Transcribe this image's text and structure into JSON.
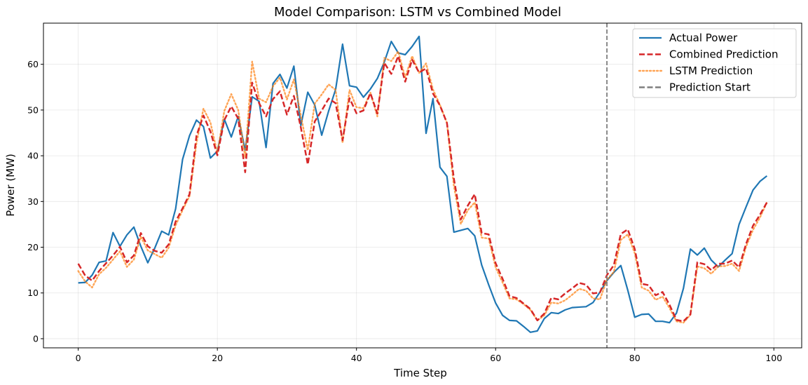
{
  "chart_data": {
    "type": "line",
    "title": "Model Comparison: LSTM vs Combined Model",
    "xlabel": "Time Step",
    "ylabel": "Power (MW)",
    "xlim": [
      -5,
      104
    ],
    "ylim": [
      -2,
      69
    ],
    "xticks": [
      0,
      20,
      40,
      60,
      80,
      100
    ],
    "yticks": [
      0,
      10,
      20,
      30,
      40,
      50,
      60
    ],
    "grid": true,
    "legend_position": "top-right",
    "prediction_start": 76,
    "series": [
      {
        "name": "Actual Power",
        "color": "#1f77b4",
        "style": "solid",
        "values": [
          12.2,
          12.3,
          13.9,
          16.7,
          17.0,
          23.2,
          20.2,
          22.7,
          24.4,
          20.2,
          16.6,
          19.8,
          23.5,
          22.7,
          28.4,
          39.2,
          44.4,
          47.8,
          46.4,
          39.5,
          41.0,
          48.0,
          44.1,
          48.6,
          41.2,
          52.9,
          51.9,
          41.8,
          55.8,
          57.8,
          54.8,
          59.6,
          46.6,
          53.9,
          51.1,
          44.5,
          49.8,
          54.5,
          64.4,
          55.3,
          55.0,
          52.8,
          54.6,
          56.9,
          60.5,
          65.0,
          62.5,
          62.1,
          63.9,
          66.1,
          44.9,
          52.5,
          37.5,
          35.5,
          23.3,
          23.7,
          24.1,
          22.5,
          16.1,
          11.8,
          7.8,
          5.1,
          4.0,
          3.9,
          2.7,
          1.4,
          1.7,
          4.4,
          5.7,
          5.5,
          6.3,
          6.8,
          6.9,
          7.0,
          7.9,
          10.2,
          12.7,
          14.5,
          16.0,
          10.6,
          4.7,
          5.3,
          5.4,
          3.8,
          3.8,
          3.5,
          5.6,
          11.0,
          19.6,
          18.3,
          19.8,
          17.2,
          15.7,
          17.2,
          18.6,
          25.0,
          28.8,
          32.5,
          34.4,
          35.6
        ]
      },
      {
        "name": "Combined Prediction",
        "color": "#d62728",
        "style": "dashed",
        "values": [
          16.4,
          13.8,
          12.7,
          14.8,
          16.5,
          18.2,
          20.1,
          16.7,
          18.2,
          23.1,
          20.2,
          19.2,
          18.8,
          20.6,
          25.6,
          28.5,
          31.6,
          44.4,
          48.8,
          45.3,
          40.1,
          47.8,
          50.8,
          48.1,
          36.4,
          56.0,
          51.5,
          48.6,
          52.4,
          54.1,
          49.0,
          53.1,
          46.2,
          38.1,
          47.5,
          49.9,
          52.5,
          51.5,
          43.4,
          52.6,
          49.3,
          49.9,
          53.7,
          49.2,
          60.3,
          57.9,
          61.8,
          56.2,
          61.0,
          58.2,
          59.1,
          53.6,
          51.0,
          47.2,
          35.0,
          26.1,
          29.1,
          31.6,
          23.1,
          22.8,
          16.5,
          13.1,
          9.3,
          8.9,
          7.7,
          6.5,
          4.0,
          5.5,
          8.9,
          8.6,
          9.9,
          11.0,
          12.2,
          11.8,
          9.9,
          10.1,
          13.9,
          16.1,
          22.9,
          23.9,
          19.6,
          12.0,
          11.7,
          9.5,
          10.2,
          7.4,
          4.1,
          3.8,
          5.3,
          16.7,
          16.3,
          15.0,
          16.4,
          16.4,
          17.1,
          15.6,
          20.7,
          24.7,
          27.1,
          29.8
        ]
      },
      {
        "name": "LSTM Prediction",
        "color": "#ff7f0e",
        "style": "dotted",
        "values": [
          14.8,
          12.5,
          11.2,
          14.1,
          15.5,
          17.3,
          19.1,
          15.7,
          17.3,
          22.3,
          19.3,
          18.5,
          17.7,
          19.9,
          24.8,
          28.1,
          31.2,
          42.8,
          50.3,
          47.3,
          40.6,
          49.8,
          53.5,
          50.0,
          39.6,
          60.6,
          52.5,
          51.7,
          55.2,
          57.1,
          52.3,
          56.7,
          48.8,
          41.2,
          51.4,
          53.4,
          55.6,
          54.4,
          42.8,
          54.4,
          50.6,
          50.4,
          53.8,
          48.6,
          61.4,
          60.7,
          62.8,
          57.1,
          61.8,
          58.1,
          60.2,
          54.5,
          51.1,
          47.2,
          33.4,
          25.1,
          28.1,
          29.8,
          22.1,
          21.9,
          15.6,
          12.3,
          8.8,
          8.6,
          7.6,
          6.3,
          4.0,
          5.1,
          7.9,
          7.7,
          8.4,
          9.6,
          10.9,
          10.5,
          8.8,
          8.6,
          12.9,
          14.6,
          21.6,
          22.8,
          18.7,
          11.2,
          10.5,
          8.5,
          9.2,
          6.7,
          3.8,
          3.5,
          5.2,
          15.8,
          15.4,
          14.2,
          15.8,
          15.9,
          16.4,
          14.8,
          20.1,
          23.8,
          26.5,
          29.8
        ]
      }
    ],
    "vline": {
      "name": "Prediction Start",
      "color": "#7f7f7f",
      "style": "dashed"
    }
  }
}
